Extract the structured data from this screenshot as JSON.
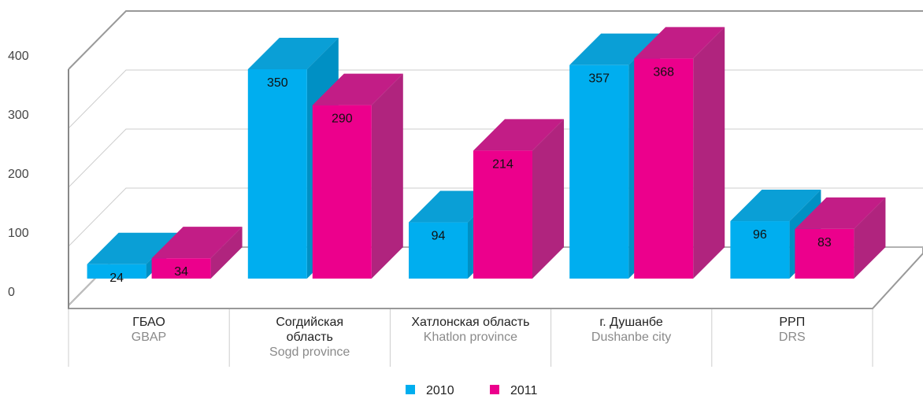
{
  "chart_data": {
    "type": "bar3d",
    "categories": [
      "ГБАО",
      "Согдийская\nобласть",
      "Хатлонская область",
      "г. Душанбе",
      "РРП"
    ],
    "categories_en": [
      "GBAP",
      "Sogd province",
      "Khatlon province",
      "Dushanbe city",
      "DRS"
    ],
    "series": [
      {
        "name": "2010",
        "color": "#00aeef",
        "values": [
          24,
          350,
          94,
          357,
          96
        ]
      },
      {
        "name": "2011",
        "color": "#ec008c",
        "values": [
          34,
          290,
          214,
          368,
          83
        ]
      }
    ],
    "ylim": [
      0,
      400
    ],
    "yticks": [
      0,
      100,
      200,
      300,
      400
    ],
    "grid": true,
    "legend": "bottom"
  }
}
